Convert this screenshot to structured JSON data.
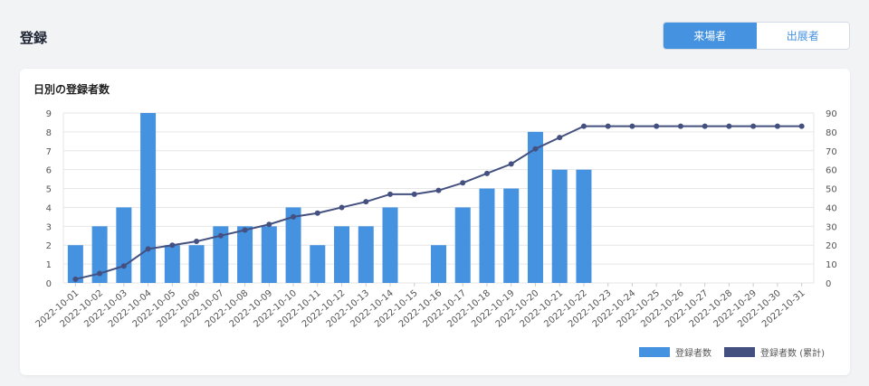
{
  "header": {
    "title": "登録",
    "tabs": [
      {
        "label": "来場者",
        "active": true
      },
      {
        "label": "出展者",
        "active": false
      }
    ]
  },
  "card": {
    "title": "日別の登録者数"
  },
  "colors": {
    "bar": "#4592e0",
    "line": "#44507f",
    "accent": "#4592e0"
  },
  "chart_data": {
    "type": "bar",
    "title": "",
    "xlabel": "",
    "ylabel": "",
    "categories": [
      "2022-10-01",
      "2022-10-02",
      "2022-10-03",
      "2022-10-04",
      "2022-10-05",
      "2022-10-06",
      "2022-10-07",
      "2022-10-08",
      "2022-10-09",
      "2022-10-10",
      "2022-10-11",
      "2022-10-12",
      "2022-10-13",
      "2022-10-14",
      "2022-10-15",
      "2022-10-16",
      "2022-10-17",
      "2022-10-18",
      "2022-10-19",
      "2022-10-20",
      "2022-10-21",
      "2022-10-22",
      "2022-10-23",
      "2022-10-24",
      "2022-10-25",
      "2022-10-26",
      "2022-10-27",
      "2022-10-28",
      "2022-10-29",
      "2022-10-30",
      "2022-10-31"
    ],
    "ylim": [
      0,
      9
    ],
    "y2lim": [
      0,
      90
    ],
    "yticks": [
      0,
      1,
      2,
      3,
      4,
      5,
      6,
      7,
      8,
      9
    ],
    "y2ticks": [
      0,
      10,
      20,
      30,
      40,
      50,
      60,
      70,
      80,
      90
    ],
    "grid": true,
    "legend_position": "bottom-right",
    "series": [
      {
        "name": "登録者数",
        "type": "bar",
        "axis": "left",
        "values": [
          2,
          3,
          4,
          9,
          2,
          2,
          3,
          3,
          3,
          4,
          2,
          3,
          3,
          4,
          0,
          2,
          4,
          5,
          5,
          8,
          6,
          6,
          0,
          0,
          0,
          0,
          0,
          0,
          0,
          0,
          0
        ]
      },
      {
        "name": "登録者数 (累計)",
        "type": "line",
        "axis": "right",
        "values": [
          2,
          5,
          9,
          18,
          20,
          22,
          25,
          28,
          31,
          35,
          37,
          40,
          43,
          47,
          47,
          49,
          53,
          58,
          63,
          71,
          77,
          83,
          83,
          83,
          83,
          83,
          83,
          83,
          83,
          83,
          83
        ]
      }
    ]
  }
}
